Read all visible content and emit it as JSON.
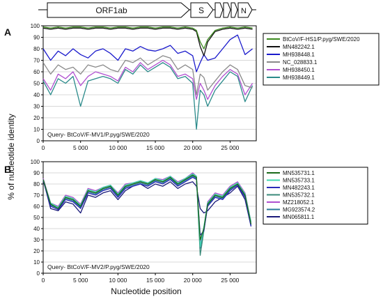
{
  "genome_map": {
    "genes": [
      "ORF1ab",
      "S",
      "",
      "",
      "",
      "N"
    ]
  },
  "colors": {
    "A": [
      "#3c8a1e",
      "#111111",
      "#1a1acc",
      "#8a8a8a",
      "#b050d0",
      "#2a8a8a"
    ],
    "B": [
      "#1a6a1a",
      "#40d8b0",
      "#2a2ab8",
      "#3a8a7a",
      "#b050d0",
      "#2a7a9a",
      "#1a1a7a"
    ]
  },
  "chart_data": [
    {
      "type": "line",
      "panel_label": "A",
      "annotation": "Query- BtCoV/F-MV1/P.pyg/SWE/2020",
      "ylabel": "% of nucleotide identity",
      "xlabel": "",
      "xlim": [
        0,
        28500
      ],
      "ylim": [
        0,
        100
      ],
      "xticks": [
        0,
        5000,
        10000,
        15000,
        20000,
        25000
      ],
      "xtick_labels": [
        "0",
        "5 000",
        "10 000",
        "15 000",
        "20 000",
        "25 000"
      ],
      "yticks": [
        0,
        10,
        20,
        30,
        40,
        50,
        60,
        70,
        80,
        90,
        100
      ],
      "x": [
        0,
        1000,
        2000,
        3000,
        4000,
        5000,
        6000,
        7000,
        8000,
        9000,
        10000,
        11000,
        12000,
        13000,
        14000,
        15000,
        16000,
        17000,
        18000,
        19000,
        20000,
        20500,
        21000,
        21500,
        22000,
        23000,
        24000,
        25000,
        26000,
        27000,
        28000
      ],
      "series": [
        {
          "name": "BtCoV/F-HS1/P.pyg/SWE/2020",
          "values": [
            99,
            98,
            99,
            98,
            99,
            99,
            98,
            99,
            99,
            98,
            99,
            99,
            98,
            99,
            99,
            98,
            99,
            99,
            98,
            99,
            98,
            96,
            86,
            80,
            88,
            96,
            98,
            99,
            98,
            99,
            98
          ]
        },
        {
          "name": "MN482242.1",
          "values": [
            98,
            97,
            98,
            97,
            98,
            98,
            97,
            98,
            98,
            97,
            98,
            98,
            97,
            98,
            98,
            97,
            98,
            98,
            97,
            98,
            97,
            95,
            82,
            74,
            86,
            95,
            97,
            98,
            97,
            98,
            97
          ]
        },
        {
          "name": "MH938448.1",
          "values": [
            80,
            70,
            78,
            74,
            80,
            75,
            72,
            78,
            80,
            76,
            70,
            80,
            78,
            82,
            79,
            78,
            80,
            83,
            76,
            78,
            74,
            60,
            68,
            75,
            70,
            72,
            80,
            88,
            92,
            75,
            80
          ]
        },
        {
          "name": "NC_028833.1",
          "values": [
            68,
            58,
            66,
            62,
            64,
            58,
            66,
            64,
            66,
            62,
            60,
            70,
            68,
            72,
            66,
            70,
            74,
            72,
            62,
            66,
            62,
            40,
            58,
            55,
            44,
            52,
            60,
            66,
            62,
            48,
            46
          ]
        },
        {
          "name": "MH938450.1",
          "values": [
            54,
            44,
            58,
            54,
            60,
            48,
            56,
            60,
            58,
            56,
            52,
            64,
            60,
            68,
            62,
            66,
            70,
            66,
            56,
            58,
            54,
            36,
            50,
            44,
            36,
            48,
            56,
            62,
            58,
            40,
            50
          ]
        },
        {
          "name": "MH938449.1",
          "values": [
            52,
            40,
            54,
            50,
            56,
            30,
            52,
            54,
            56,
            54,
            50,
            62,
            58,
            66,
            60,
            64,
            68,
            64,
            54,
            56,
            50,
            10,
            44,
            40,
            30,
            44,
            52,
            60,
            56,
            34,
            48
          ]
        }
      ]
    },
    {
      "type": "line",
      "panel_label": "B",
      "annotation": "Query- BtCoV/F-MV2/P.pyg/SWE/2020",
      "ylabel": "% of nucleotide identity",
      "xlabel": "Nucleotide position",
      "xlim": [
        0,
        28500
      ],
      "ylim": [
        0,
        100
      ],
      "xticks": [
        0,
        5000,
        10000,
        15000,
        20000,
        25000
      ],
      "xtick_labels": [
        "0",
        "5 000",
        "10 000",
        "15 000",
        "20 000",
        "25 000"
      ],
      "yticks": [
        0,
        10,
        20,
        30,
        40,
        50,
        60,
        70,
        80,
        90,
        100
      ],
      "x": [
        0,
        1000,
        2000,
        3000,
        4000,
        5000,
        6000,
        7000,
        8000,
        9000,
        10000,
        11000,
        12000,
        13000,
        14000,
        15000,
        16000,
        17000,
        18000,
        19000,
        20000,
        20500,
        21000,
        21500,
        22000,
        23000,
        24000,
        25000,
        26000,
        27000,
        27800
      ],
      "series": [
        {
          "name": "MN535731.1",
          "values": [
            84,
            62,
            58,
            68,
            66,
            60,
            74,
            72,
            76,
            78,
            70,
            78,
            80,
            82,
            80,
            84,
            82,
            86,
            80,
            84,
            88,
            86,
            30,
            40,
            62,
            70,
            68,
            76,
            80,
            70,
            44
          ]
        },
        {
          "name": "MN535733.1",
          "values": [
            84,
            63,
            59,
            69,
            67,
            61,
            75,
            73,
            77,
            79,
            71,
            79,
            81,
            83,
            81,
            85,
            83,
            87,
            81,
            85,
            89,
            87,
            24,
            42,
            63,
            71,
            69,
            77,
            81,
            71,
            46
          ]
        },
        {
          "name": "MN482243.1",
          "values": [
            83,
            60,
            57,
            66,
            64,
            58,
            72,
            70,
            74,
            76,
            68,
            76,
            78,
            80,
            78,
            82,
            80,
            84,
            78,
            82,
            86,
            84,
            34,
            38,
            60,
            68,
            66,
            74,
            79,
            68,
            42
          ]
        },
        {
          "name": "MN535732.1",
          "values": [
            84,
            62,
            58,
            68,
            66,
            60,
            74,
            72,
            76,
            78,
            70,
            78,
            80,
            82,
            80,
            84,
            82,
            86,
            80,
            84,
            88,
            85,
            16,
            38,
            62,
            70,
            68,
            76,
            80,
            70,
            44
          ]
        },
        {
          "name": "MZ218052.1",
          "values": [
            85,
            63,
            60,
            70,
            68,
            62,
            76,
            74,
            77,
            79,
            72,
            80,
            81,
            83,
            81,
            85,
            84,
            87,
            82,
            85,
            90,
            87,
            28,
            41,
            64,
            72,
            70,
            78,
            82,
            72,
            46
          ]
        },
        {
          "name": "MG923574.2",
          "values": [
            84,
            61,
            58,
            67,
            65,
            59,
            73,
            71,
            75,
            77,
            69,
            77,
            79,
            81,
            79,
            83,
            81,
            85,
            79,
            83,
            87,
            85,
            22,
            39,
            61,
            69,
            67,
            75,
            80,
            69,
            43
          ]
        },
        {
          "name": "MN065811.1",
          "values": [
            84,
            58,
            56,
            64,
            62,
            54,
            70,
            68,
            72,
            74,
            66,
            74,
            78,
            80,
            76,
            80,
            78,
            82,
            76,
            80,
            82,
            78,
            58,
            54,
            56,
            64,
            68,
            72,
            78,
            66,
            42
          ]
        }
      ]
    }
  ]
}
